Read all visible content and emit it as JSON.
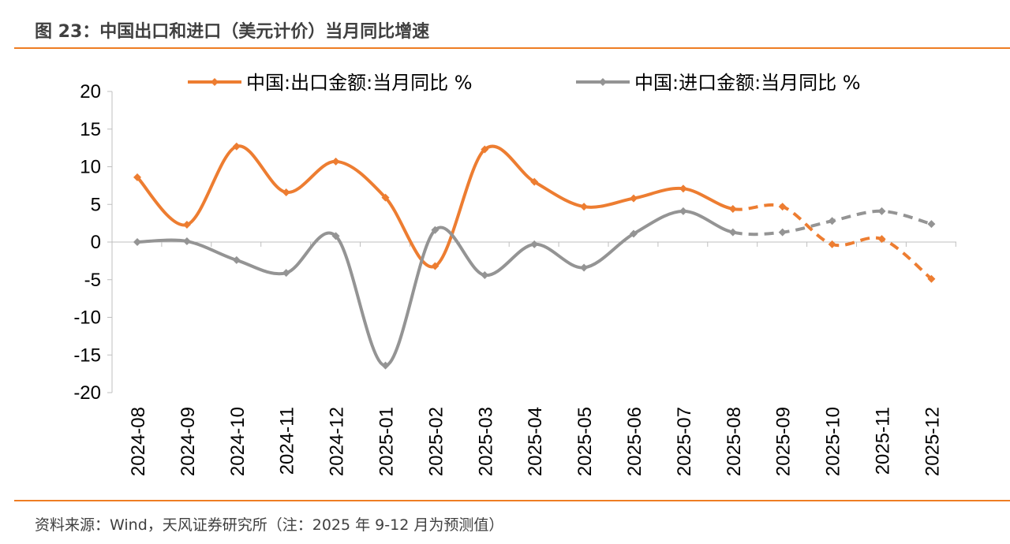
{
  "title": "图 23：中国出口和进口（美元计价）当月同比增速",
  "footer": "资料来源：Wind，天风证券研究所（注：2025 年 9-12 月为预测值）",
  "colors": {
    "accent": "#ee7d23",
    "export": "#ed7d31",
    "import": "#949494"
  },
  "chart_data": {
    "type": "line",
    "categories": [
      "2024-08",
      "2024-09",
      "2024-10",
      "2024-11",
      "2024-12",
      "2025-01",
      "2025-02",
      "2025-03",
      "2025-04",
      "2025-05",
      "2025-06",
      "2025-07",
      "2025-08",
      "2025-09",
      "2025-10",
      "2025-11",
      "2025-12"
    ],
    "ylim": [
      -20,
      20
    ],
    "yticks": [
      20,
      15,
      10,
      5,
      0,
      -5,
      -10,
      -15,
      -20
    ],
    "grid": false,
    "legend": "top",
    "forecast_from": "2025-08",
    "series": [
      {
        "name": "中国:出口金额:当月同比 %",
        "color": "#ed7d31",
        "values": [
          8.6,
          2.3,
          12.7,
          6.6,
          10.7,
          5.9,
          -3.2,
          12.3,
          8.0,
          4.7,
          5.8,
          7.1,
          4.4,
          4.7,
          -0.3,
          0.4,
          -4.9
        ]
      },
      {
        "name": "中国:进口金额:当月同比 %",
        "color": "#949494",
        "values": [
          0.0,
          0.1,
          -2.4,
          -4.1,
          0.8,
          -16.4,
          1.6,
          -4.4,
          -0.3,
          -3.4,
          1.1,
          4.1,
          1.3,
          1.3,
          2.8,
          4.1,
          2.4
        ]
      }
    ]
  }
}
